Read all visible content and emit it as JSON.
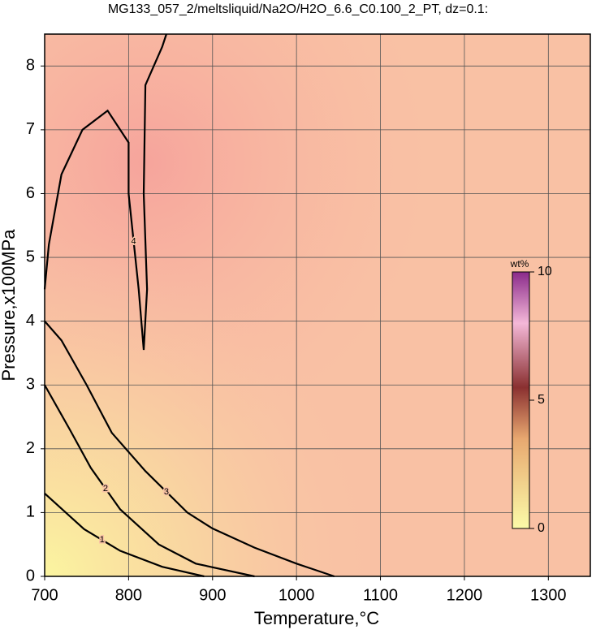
{
  "chart_data": {
    "type": "contour",
    "title": "MG133_057_2/meltsliquid/Na2O/H2O_6.6_C0.100_2_PT, dz=0.1:",
    "x_label": "Temperature,°C",
    "y_label": "Pressure,x100MPa",
    "xlim": [
      700,
      1350
    ],
    "ylim": [
      0,
      8.5
    ],
    "xticks": [
      700,
      800,
      900,
      1000,
      1100,
      1200,
      1300
    ],
    "yticks": [
      0,
      1,
      2,
      3,
      4,
      5,
      6,
      7,
      8
    ],
    "grid": true,
    "colorbar_label": "wt%",
    "clim": [
      0,
      10
    ],
    "cticks": [
      0,
      5,
      10
    ],
    "contours": [
      {
        "level": 4,
        "x": [
          845,
          840,
          820,
          818,
          822,
          818,
          812,
          800,
          800,
          775,
          745,
          720,
          705,
          700
        ],
        "y": [
          8.5,
          8.3,
          7.7,
          6,
          4.5,
          3.55,
          4.5,
          6,
          6.8,
          7.3,
          7.0,
          6.3,
          5.2,
          4.5
        ]
      },
      {
        "level": 3,
        "x": [
          700,
          720,
          750,
          780,
          820,
          870,
          900,
          950,
          1000,
          1045
        ],
        "y": [
          4.0,
          3.7,
          3.0,
          2.25,
          1.65,
          1.0,
          0.75,
          0.45,
          0.2,
          0
        ]
      },
      {
        "level": 2,
        "x": [
          700,
          730,
          755,
          790,
          836,
          880,
          950
        ],
        "y": [
          3.0,
          2.3,
          1.7,
          1.05,
          0.5,
          0.2,
          0
        ]
      },
      {
        "level": 1,
        "x": [
          700,
          747,
          790,
          840,
          890
        ],
        "y": [
          1.3,
          0.74,
          0.4,
          0.15,
          0
        ]
      }
    ]
  }
}
